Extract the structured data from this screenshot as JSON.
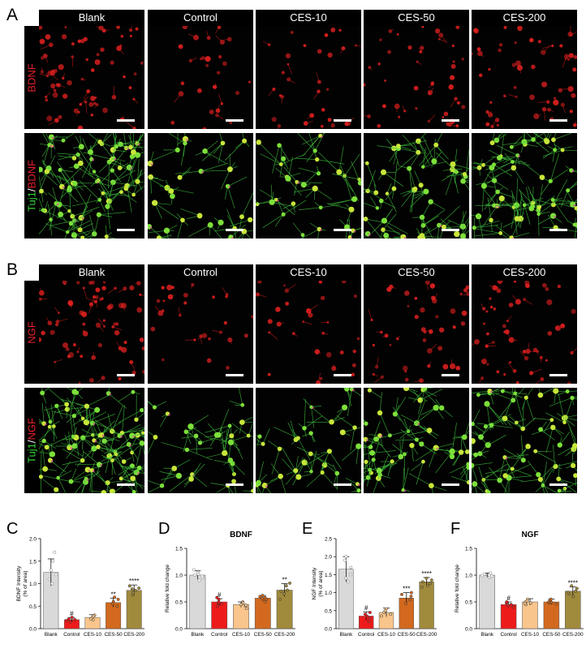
{
  "panelA": {
    "letter": "A",
    "columns": [
      "Blank",
      "Control",
      "CES-10",
      "CES-50",
      "CES-200"
    ],
    "rows": [
      {
        "label_parts": [
          {
            "text": "BDNF",
            "color": "#e8212a"
          }
        ],
        "kind": "red"
      },
      {
        "label_parts": [
          {
            "text": "Tuj1",
            "color": "#35d43a"
          },
          {
            "text": "/",
            "color": "#ffffff"
          },
          {
            "text": "BDNF",
            "color": "#e8212a"
          }
        ],
        "kind": "merge"
      }
    ]
  },
  "panelB": {
    "letter": "B",
    "columns": [
      "Blank",
      "Control",
      "CES-10",
      "CES-50",
      "CES-200"
    ],
    "rows": [
      {
        "label_parts": [
          {
            "text": "NGF",
            "color": "#e8212a"
          }
        ],
        "kind": "red"
      },
      {
        "label_parts": [
          {
            "text": "Tuj1",
            "color": "#35d43a"
          },
          {
            "text": "/",
            "color": "#ffffff"
          },
          {
            "text": "NGF",
            "color": "#e8212a"
          }
        ],
        "kind": "merge"
      }
    ]
  },
  "chart_data": [
    {
      "letter": "C",
      "type": "bar",
      "title": "",
      "ylabel": "BDNF Intensity\n(% of area)",
      "categories": [
        "Blank",
        "Control",
        "CES-10",
        "CES-50",
        "CES-200"
      ],
      "values": [
        1.25,
        0.2,
        0.25,
        0.58,
        0.85
      ],
      "errors": [
        0.3,
        0.05,
        0.06,
        0.1,
        0.12
      ],
      "marks": [
        "",
        "#",
        "",
        "**",
        "****"
      ],
      "ylim": [
        0,
        2.0
      ],
      "yticks": [
        0,
        0.5,
        1.0,
        1.5,
        2.0
      ],
      "colors": [
        "#d9d9d9",
        "#ee1b1b",
        "#f9c58c",
        "#d2691e",
        "#a08a3c"
      ],
      "points": [
        [
          1.0,
          1.2,
          1.3,
          1.5,
          1.7,
          1.1
        ],
        [
          0.15,
          0.2,
          0.22,
          0.18,
          0.25
        ],
        [
          0.2,
          0.25,
          0.3,
          0.22,
          0.28
        ],
        [
          0.5,
          0.6,
          0.65,
          0.55,
          0.7
        ],
        [
          0.75,
          0.85,
          0.9,
          0.8,
          0.95,
          0.88
        ]
      ]
    },
    {
      "letter": "D",
      "type": "bar",
      "title": "BDNF",
      "ylabel": "Relative fold change",
      "categories": [
        "Blank",
        "Control",
        "CES-10",
        "CES-50",
        "CES-200"
      ],
      "values": [
        1.0,
        0.5,
        0.45,
        0.57,
        0.72
      ],
      "errors": [
        0.08,
        0.06,
        0.05,
        0.05,
        0.12
      ],
      "marks": [
        "",
        "#",
        "",
        "",
        "**"
      ],
      "ylim": [
        0,
        1.5
      ],
      "yticks": [
        0,
        0.5,
        1.0,
        1.5
      ],
      "colors": [
        "#d9d9d9",
        "#ee1b1b",
        "#f9c58c",
        "#d2691e",
        "#a08a3c"
      ],
      "points": [
        [
          0.9,
          0.95,
          1.0,
          1.05,
          1.1,
          0.98,
          1.02
        ],
        [
          0.42,
          0.48,
          0.5,
          0.55,
          0.58,
          0.46
        ],
        [
          0.38,
          0.42,
          0.45,
          0.5,
          0.48,
          0.44
        ],
        [
          0.5,
          0.55,
          0.58,
          0.6,
          0.62,
          0.56
        ],
        [
          0.55,
          0.65,
          0.72,
          0.8,
          0.85,
          0.7
        ]
      ]
    },
    {
      "letter": "E",
      "type": "bar",
      "title": "",
      "ylabel": "NGF Intensity\n(% of area)",
      "categories": [
        "Blank",
        "Control",
        "CES-10",
        "CES-50",
        "CES-200"
      ],
      "values": [
        1.65,
        0.35,
        0.45,
        0.85,
        1.3
      ],
      "errors": [
        0.35,
        0.12,
        0.12,
        0.15,
        0.12
      ],
      "marks": [
        "",
        "#",
        "",
        "***",
        "****"
      ],
      "ylim": [
        0,
        2.5
      ],
      "yticks": [
        0,
        0.5,
        1.0,
        1.5,
        2.0,
        2.5
      ],
      "colors": [
        "#d9d9d9",
        "#ee1b1b",
        "#f9c58c",
        "#d2691e",
        "#a08a3c"
      ],
      "points": [
        [
          1.3,
          1.5,
          1.7,
          1.9,
          2.0,
          1.4
        ],
        [
          0.2,
          0.3,
          0.35,
          0.45,
          0.4
        ],
        [
          0.35,
          0.4,
          0.45,
          0.55,
          0.5
        ],
        [
          0.7,
          0.8,
          0.9,
          1.0,
          0.95
        ],
        [
          1.15,
          1.25,
          1.35,
          1.4,
          1.3,
          1.2
        ]
      ]
    },
    {
      "letter": "F",
      "type": "bar",
      "title": "NGF",
      "ylabel": "Relative fold change",
      "categories": [
        "Blank",
        "Control",
        "CES-10",
        "CES-50",
        "CES-200"
      ],
      "values": [
        1.0,
        0.45,
        0.5,
        0.5,
        0.7
      ],
      "errors": [
        0.04,
        0.05,
        0.06,
        0.05,
        0.08
      ],
      "marks": [
        "",
        "#",
        "",
        "",
        "****"
      ],
      "ylim": [
        0,
        1.5
      ],
      "yticks": [
        0,
        0.5,
        1.0,
        1.5
      ],
      "colors": [
        "#d9d9d9",
        "#ee1b1b",
        "#f9c58c",
        "#d2691e",
        "#a08a3c"
      ],
      "points": [
        [
          0.96,
          0.98,
          1.0,
          1.02,
          1.04,
          0.99
        ],
        [
          0.4,
          0.43,
          0.45,
          0.48,
          0.5,
          0.44
        ],
        [
          0.45,
          0.48,
          0.5,
          0.55,
          0.52,
          0.47
        ],
        [
          0.46,
          0.48,
          0.5,
          0.53,
          0.55,
          0.49
        ],
        [
          0.6,
          0.65,
          0.7,
          0.75,
          0.8,
          0.68
        ]
      ]
    }
  ]
}
